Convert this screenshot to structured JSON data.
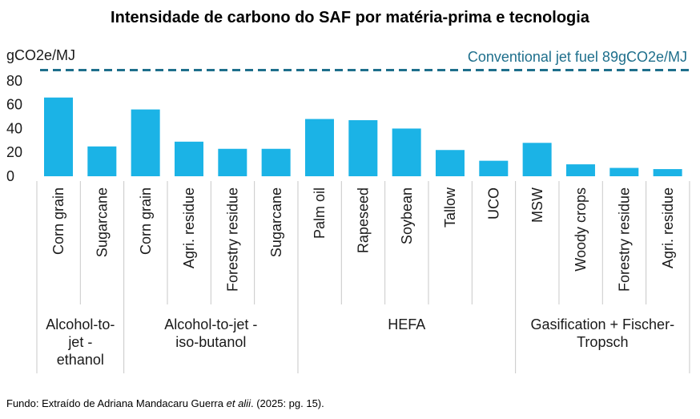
{
  "chart_data": {
    "type": "bar",
    "title": "Intensidade de carbono do SAF por matéria-prima e tecnologia",
    "ylabel": "gCO2e/MJ",
    "ylim": [
      0,
      90
    ],
    "yticks": [
      0,
      20,
      40,
      60,
      80
    ],
    "categories": [
      "Corn grain",
      "Sugarcane",
      "Corn grain",
      "Agri. residue",
      "Forestry residue",
      "Sugarcane",
      "Palm oil",
      "Rapeseed",
      "Soybean",
      "Tallow",
      "UCO",
      "MSW",
      "Woody crops",
      "Forestry residue",
      "Agri. residue"
    ],
    "values": [
      66,
      25,
      56,
      29,
      23,
      23,
      48,
      47,
      40,
      22,
      13,
      28,
      10,
      7,
      6
    ],
    "groups": [
      {
        "label": "Alcohol-to-jet - ethanol",
        "lines": [
          "Alcohol-to-",
          "jet -",
          "ethanol"
        ],
        "count": 2
      },
      {
        "label": "Alcohol-to-jet - iso-butanol",
        "lines": [
          "Alcohol-to-jet -",
          "iso-butanol"
        ],
        "count": 4
      },
      {
        "label": "HEFA",
        "lines": [
          "HEFA"
        ],
        "count": 5
      },
      {
        "label": "Gasification + Fischer-Tropsch",
        "lines": [
          "Gasification + Fischer-",
          "Tropsch"
        ],
        "count": 4
      }
    ],
    "reference_line": {
      "value": 89,
      "label": "Conventional  jet fuel 89gCO2e/MJ"
    },
    "bar_color": "#1bb3e6",
    "reference_color": "#1e6f8c",
    "grid": false,
    "legend": "none"
  },
  "source": {
    "prefix": "Fundo:  Extraído de Adriana Mandacaru Guerra ",
    "italic": "et alii",
    "suffix": ". (2025: pg. 15)."
  }
}
